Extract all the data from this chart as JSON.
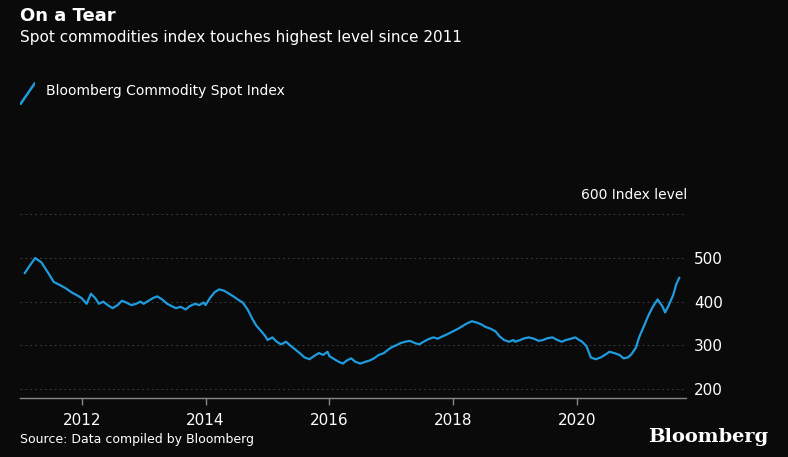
{
  "title_bold": "On a Tear",
  "title_sub": "Spot commodities index touches highest level since 2011",
  "legend_label": "Bloomberg Commodity Spot Index",
  "ylabel_text": "600 Index level",
  "source_text": "Source: Data compiled by Bloomberg",
  "bloomberg_text": "Bloomberg",
  "background_color": "#0a0a0a",
  "text_color": "#ffffff",
  "line_color": "#1f9bde",
  "grid_color": "#3a3a3a",
  "axis_color": "#888888",
  "yticks": [
    200,
    300,
    400,
    500
  ],
  "ytick_labels": [
    "200",
    "300",
    "400",
    "500"
  ],
  "ylim": [
    180,
    620
  ],
  "xlim_start": 2011.0,
  "xlim_end": 2021.75,
  "series": [
    [
      2011.08,
      465
    ],
    [
      2011.15,
      480
    ],
    [
      2011.25,
      500
    ],
    [
      2011.35,
      490
    ],
    [
      2011.45,
      468
    ],
    [
      2011.55,
      445
    ],
    [
      2011.65,
      438
    ],
    [
      2011.75,
      430
    ],
    [
      2011.85,
      420
    ],
    [
      2011.92,
      415
    ],
    [
      2012.0,
      408
    ],
    [
      2012.08,
      395
    ],
    [
      2012.15,
      418
    ],
    [
      2012.22,
      408
    ],
    [
      2012.28,
      395
    ],
    [
      2012.35,
      400
    ],
    [
      2012.42,
      392
    ],
    [
      2012.5,
      385
    ],
    [
      2012.58,
      392
    ],
    [
      2012.65,
      402
    ],
    [
      2012.72,
      398
    ],
    [
      2012.8,
      392
    ],
    [
      2012.88,
      395
    ],
    [
      2012.95,
      400
    ],
    [
      2013.0,
      395
    ],
    [
      2013.08,
      402
    ],
    [
      2013.15,
      408
    ],
    [
      2013.22,
      412
    ],
    [
      2013.3,
      405
    ],
    [
      2013.38,
      395
    ],
    [
      2013.45,
      390
    ],
    [
      2013.52,
      385
    ],
    [
      2013.6,
      388
    ],
    [
      2013.68,
      382
    ],
    [
      2013.75,
      390
    ],
    [
      2013.83,
      395
    ],
    [
      2013.9,
      392
    ],
    [
      2013.97,
      398
    ],
    [
      2014.0,
      392
    ],
    [
      2014.08,
      410
    ],
    [
      2014.15,
      422
    ],
    [
      2014.22,
      428
    ],
    [
      2014.3,
      425
    ],
    [
      2014.38,
      418
    ],
    [
      2014.45,
      412
    ],
    [
      2014.52,
      405
    ],
    [
      2014.6,
      398
    ],
    [
      2014.68,
      382
    ],
    [
      2014.75,
      362
    ],
    [
      2014.82,
      345
    ],
    [
      2014.9,
      332
    ],
    [
      2014.97,
      320
    ],
    [
      2015.0,
      312
    ],
    [
      2015.08,
      318
    ],
    [
      2015.15,
      308
    ],
    [
      2015.22,
      302
    ],
    [
      2015.3,
      308
    ],
    [
      2015.38,
      298
    ],
    [
      2015.45,
      290
    ],
    [
      2015.52,
      282
    ],
    [
      2015.6,
      272
    ],
    [
      2015.68,
      268
    ],
    [
      2015.75,
      275
    ],
    [
      2015.83,
      282
    ],
    [
      2015.9,
      278
    ],
    [
      2015.97,
      285
    ],
    [
      2016.0,
      275
    ],
    [
      2016.08,
      268
    ],
    [
      2016.15,
      262
    ],
    [
      2016.22,
      258
    ],
    [
      2016.28,
      265
    ],
    [
      2016.35,
      270
    ],
    [
      2016.42,
      262
    ],
    [
      2016.5,
      258
    ],
    [
      2016.58,
      262
    ],
    [
      2016.65,
      265
    ],
    [
      2016.72,
      270
    ],
    [
      2016.8,
      278
    ],
    [
      2016.88,
      282
    ],
    [
      2016.95,
      290
    ],
    [
      2017.0,
      295
    ],
    [
      2017.08,
      300
    ],
    [
      2017.15,
      305
    ],
    [
      2017.22,
      308
    ],
    [
      2017.3,
      310
    ],
    [
      2017.38,
      305
    ],
    [
      2017.45,
      302
    ],
    [
      2017.52,
      308
    ],
    [
      2017.6,
      314
    ],
    [
      2017.68,
      318
    ],
    [
      2017.75,
      315
    ],
    [
      2017.82,
      320
    ],
    [
      2017.9,
      325
    ],
    [
      2017.97,
      330
    ],
    [
      2018.0,
      332
    ],
    [
      2018.08,
      338
    ],
    [
      2018.15,
      344
    ],
    [
      2018.22,
      350
    ],
    [
      2018.3,
      355
    ],
    [
      2018.38,
      352
    ],
    [
      2018.45,
      348
    ],
    [
      2018.52,
      342
    ],
    [
      2018.6,
      338
    ],
    [
      2018.68,
      332
    ],
    [
      2018.75,
      320
    ],
    [
      2018.82,
      312
    ],
    [
      2018.9,
      308
    ],
    [
      2018.97,
      312
    ],
    [
      2019.0,
      308
    ],
    [
      2019.08,
      312
    ],
    [
      2019.15,
      316
    ],
    [
      2019.22,
      318
    ],
    [
      2019.3,
      315
    ],
    [
      2019.38,
      310
    ],
    [
      2019.45,
      312
    ],
    [
      2019.52,
      316
    ],
    [
      2019.6,
      318
    ],
    [
      2019.68,
      312
    ],
    [
      2019.75,
      308
    ],
    [
      2019.82,
      312
    ],
    [
      2019.9,
      315
    ],
    [
      2019.97,
      318
    ],
    [
      2020.0,
      315
    ],
    [
      2020.08,
      308
    ],
    [
      2020.15,
      298
    ],
    [
      2020.22,
      272
    ],
    [
      2020.3,
      268
    ],
    [
      2020.38,
      272
    ],
    [
      2020.45,
      278
    ],
    [
      2020.52,
      285
    ],
    [
      2020.6,
      282
    ],
    [
      2020.68,
      278
    ],
    [
      2020.75,
      270
    ],
    [
      2020.82,
      272
    ],
    [
      2020.88,
      280
    ],
    [
      2020.95,
      295
    ],
    [
      2021.0,
      318
    ],
    [
      2021.08,
      345
    ],
    [
      2021.15,
      368
    ],
    [
      2021.22,
      388
    ],
    [
      2021.3,
      405
    ],
    [
      2021.38,
      388
    ],
    [
      2021.42,
      375
    ],
    [
      2021.48,
      392
    ],
    [
      2021.55,
      415
    ],
    [
      2021.6,
      440
    ],
    [
      2021.65,
      455
    ]
  ]
}
